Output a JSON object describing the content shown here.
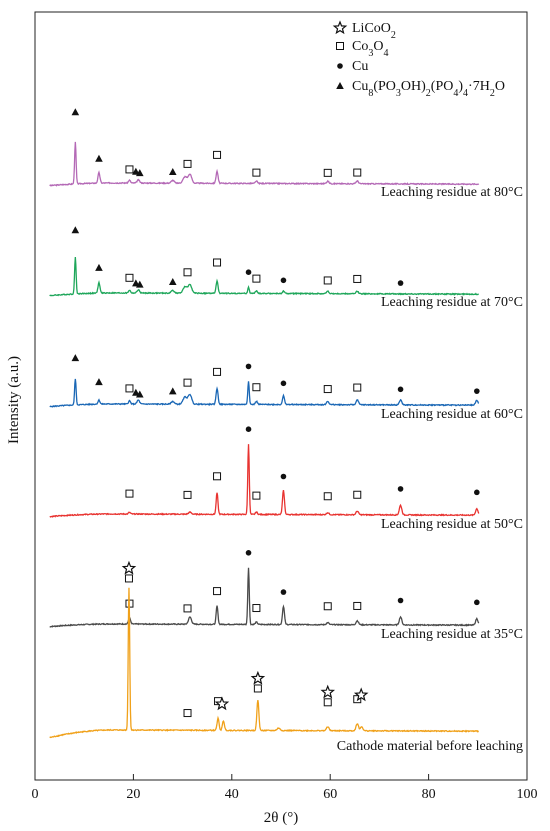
{
  "chart_data": {
    "type": "line",
    "xlabel": "2θ (°)",
    "ylabel": "Intensity (a.u.)",
    "xlim": [
      0,
      100
    ],
    "x_ticks": [
      "0",
      "20",
      "40",
      "60",
      "80",
      "100"
    ],
    "legend": [
      {
        "marker": "star",
        "label": "LiCoO2"
      },
      {
        "marker": "square",
        "label": "Co3O4"
      },
      {
        "marker": "circle",
        "label": "Cu"
      },
      {
        "marker": "triangle",
        "label": "Cu8(PO3OH)2(PO4)4·7H2O"
      }
    ],
    "legend_rich": [
      [
        {
          "t": "LiCoO"
        },
        {
          "t": "2",
          "sub": true
        }
      ],
      [
        {
          "t": "Co"
        },
        {
          "t": "3",
          "sub": true
        },
        {
          "t": "O"
        },
        {
          "t": "4",
          "sub": true
        }
      ],
      [
        {
          "t": "Cu"
        }
      ],
      [
        {
          "t": "Cu"
        },
        {
          "t": "8",
          "sub": true
        },
        {
          "t": "(PO"
        },
        {
          "t": "3",
          "sub": true
        },
        {
          "t": "OH)"
        },
        {
          "t": "2",
          "sub": true
        },
        {
          "t": "(PO"
        },
        {
          "t": "4",
          "sub": true
        },
        {
          "t": ")"
        },
        {
          "t": "4",
          "sub": true
        },
        {
          "t": "·7H"
        },
        {
          "t": "2",
          "sub": true
        },
        {
          "t": "O"
        }
      ]
    ],
    "series": [
      {
        "name": "Leaching residue at 80°C",
        "color": "#b469b6",
        "baseline": 0.38,
        "start": 0.05,
        "peaks": [
          [
            8.2,
            5.2,
            0.15
          ],
          [
            13,
            1.3,
            0.2
          ],
          [
            19.2,
            0.35,
            0.2
          ],
          [
            21,
            0.4,
            0.25
          ],
          [
            28,
            0.35,
            0.3
          ],
          [
            30.5,
            0.8,
            0.4
          ],
          [
            31.5,
            1.1,
            0.35
          ],
          [
            37,
            1.5,
            0.2
          ],
          [
            45,
            0.3,
            0.2
          ],
          [
            59.5,
            0.3,
            0.25
          ],
          [
            65.5,
            0.35,
            0.25
          ]
        ],
        "markers": [
          {
            "symbol": "triangle",
            "x": 8.2,
            "rank": 0,
            "lift": 3.0
          },
          {
            "symbol": "triangle",
            "x": 13,
            "rank": 0,
            "lift": 1.0
          },
          {
            "symbol": "square",
            "x": 19.2,
            "rank": 0,
            "lift": 0.6
          },
          {
            "symbol": "triangle",
            "x": 20.5,
            "rank": 0,
            "lift": 0.6
          },
          {
            "symbol": "triangle",
            "x": 21.3,
            "rank": 0,
            "lift": 0.3
          },
          {
            "symbol": "triangle",
            "x": 28,
            "rank": 0,
            "lift": 0.3
          },
          {
            "symbol": "square",
            "x": 31,
            "rank": 0,
            "lift": 0.9
          },
          {
            "symbol": "square",
            "x": 37,
            "rank": 0,
            "lift": 1.3
          },
          {
            "symbol": "square",
            "x": 45,
            "rank": 0,
            "lift": 0.3
          },
          {
            "symbol": "square",
            "x": 59.5,
            "rank": 0,
            "lift": 0.3
          },
          {
            "symbol": "square",
            "x": 65.5,
            "rank": 0,
            "lift": 0.3
          }
        ]
      },
      {
        "name": "Leaching residue at 70°C",
        "color": "#1ea65a",
        "baseline": 0.38,
        "start": 0.05,
        "peaks": [
          [
            8.2,
            4.6,
            0.15
          ],
          [
            13,
            1.3,
            0.2
          ],
          [
            19.2,
            0.35,
            0.2
          ],
          [
            21,
            0.4,
            0.25
          ],
          [
            28,
            0.35,
            0.3
          ],
          [
            30.5,
            0.8,
            0.4
          ],
          [
            31.5,
            1.1,
            0.35
          ],
          [
            37,
            1.5,
            0.2
          ],
          [
            43.4,
            0.8,
            0.15
          ],
          [
            45,
            0.3,
            0.2
          ],
          [
            50.5,
            0.3,
            0.2
          ],
          [
            59.5,
            0.3,
            0.25
          ],
          [
            65.5,
            0.3,
            0.25
          ]
        ],
        "markers": [
          {
            "symbol": "triangle",
            "x": 8.2,
            "rank": 0,
            "lift": 2.6
          },
          {
            "symbol": "triangle",
            "x": 13,
            "rank": 0,
            "lift": 1.1
          },
          {
            "symbol": "square",
            "x": 19.2,
            "rank": 0,
            "lift": 0.8
          },
          {
            "symbol": "triangle",
            "x": 20.5,
            "rank": 0,
            "lift": 0.4
          },
          {
            "symbol": "triangle",
            "x": 21.3,
            "rank": 0,
            "lift": 0.1
          },
          {
            "symbol": "triangle",
            "x": 28,
            "rank": 0,
            "lift": 0.3
          },
          {
            "symbol": "square",
            "x": 31,
            "rank": 0,
            "lift": 1.1
          },
          {
            "symbol": "square",
            "x": 37,
            "rank": 0,
            "lift": 1.6
          },
          {
            "symbol": "circle",
            "x": 43.4,
            "rank": 0,
            "lift": 1.1
          },
          {
            "symbol": "square",
            "x": 45,
            "rank": 0,
            "lift": 0.8
          },
          {
            "symbol": "circle",
            "x": 50.5,
            "rank": 0,
            "lift": 0.6
          },
          {
            "symbol": "square",
            "x": 59.5,
            "rank": 0,
            "lift": 0.6
          },
          {
            "symbol": "square",
            "x": 65.5,
            "rank": 0,
            "lift": 0.8
          },
          {
            "symbol": "circle",
            "x": 74.3,
            "rank": 0,
            "lift": 0.6
          }
        ]
      },
      {
        "name": "Leaching residue at 60°C",
        "color": "#1a67b5",
        "baseline": 0.38,
        "start": 0.05,
        "peaks": [
          [
            8.2,
            3.3,
            0.15
          ],
          [
            13,
            0.5,
            0.2
          ],
          [
            19.2,
            0.4,
            0.2
          ],
          [
            21,
            0.5,
            0.25
          ],
          [
            28,
            0.35,
            0.3
          ],
          [
            30.5,
            0.9,
            0.4
          ],
          [
            31.5,
            1.2,
            0.35
          ],
          [
            37,
            2.0,
            0.2
          ],
          [
            43.4,
            2.9,
            0.15
          ],
          [
            45,
            0.4,
            0.2
          ],
          [
            50.5,
            1.1,
            0.2
          ],
          [
            59.5,
            0.4,
            0.25
          ],
          [
            65.5,
            0.6,
            0.25
          ],
          [
            74.3,
            0.6,
            0.25
          ],
          [
            89.8,
            0.6,
            0.25
          ]
        ],
        "markers": [
          {
            "symbol": "triangle",
            "x": 8.2,
            "rank": 0,
            "lift": 1.8
          },
          {
            "symbol": "triangle",
            "x": 13,
            "rank": 0,
            "lift": 1.5
          },
          {
            "symbol": "square",
            "x": 19.2,
            "rank": 0,
            "lift": 0.8
          },
          {
            "symbol": "triangle",
            "x": 20.5,
            "rank": 0,
            "lift": 0.6
          },
          {
            "symbol": "triangle",
            "x": 21.3,
            "rank": 0,
            "lift": 0.2
          },
          {
            "symbol": "triangle",
            "x": 28,
            "rank": 0,
            "lift": 0.5
          },
          {
            "symbol": "square",
            "x": 31,
            "rank": 0,
            "lift": 1.1
          },
          {
            "symbol": "square",
            "x": 37,
            "rank": 0,
            "lift": 1.3
          },
          {
            "symbol": "circle",
            "x": 43.4,
            "rank": 0,
            "lift": 1.1
          },
          {
            "symbol": "square",
            "x": 45,
            "rank": 0,
            "lift": 1.0
          },
          {
            "symbol": "circle",
            "x": 50.5,
            "rank": 0,
            "lift": 0.8
          },
          {
            "symbol": "square",
            "x": 59.5,
            "rank": 0,
            "lift": 0.8
          },
          {
            "symbol": "square",
            "x": 65.5,
            "rank": 0,
            "lift": 0.8
          },
          {
            "symbol": "circle",
            "x": 74.3,
            "rank": 0,
            "lift": 0.6
          },
          {
            "symbol": "circle",
            "x": 89.8,
            "rank": 0,
            "lift": 0.4
          }
        ]
      },
      {
        "name": "Leaching residue at 50°C",
        "color": "#e83330",
        "baseline": 0.38,
        "start": 0.05,
        "peaks": [
          [
            19.2,
            0.2,
            0.2
          ],
          [
            31.5,
            0.25,
            0.3
          ],
          [
            37,
            2.7,
            0.18
          ],
          [
            43.4,
            8.8,
            0.15
          ],
          [
            45,
            0.3,
            0.2
          ],
          [
            50.5,
            3.0,
            0.2
          ],
          [
            59.5,
            0.25,
            0.25
          ],
          [
            65.5,
            0.45,
            0.25
          ],
          [
            74.3,
            1.2,
            0.25
          ],
          [
            89.8,
            0.8,
            0.25
          ]
        ],
        "markers": [
          {
            "symbol": "square",
            "x": 19.2,
            "rank": 0,
            "lift": 1.6
          },
          {
            "symbol": "square",
            "x": 31,
            "rank": 0,
            "lift": 1.6
          },
          {
            "symbol": "square",
            "x": 37,
            "rank": 0,
            "lift": 1.3
          },
          {
            "symbol": "circle",
            "x": 43.4,
            "rank": 0,
            "lift": 1.1
          },
          {
            "symbol": "square",
            "x": 45,
            "rank": 0,
            "lift": 1.3
          },
          {
            "symbol": "circle",
            "x": 50.5,
            "rank": 0,
            "lift": 1.0
          },
          {
            "symbol": "square",
            "x": 59.5,
            "rank": 0,
            "lift": 1.3
          },
          {
            "symbol": "square",
            "x": 65.5,
            "rank": 0,
            "lift": 1.3
          },
          {
            "symbol": "circle",
            "x": 74.3,
            "rank": 0,
            "lift": 1.3
          },
          {
            "symbol": "circle",
            "x": 89.8,
            "rank": 0,
            "lift": 1.3
          }
        ]
      },
      {
        "name": "Leaching residue at 35°C",
        "color": "#4a4a4a",
        "baseline": 0.38,
        "start": 0.05,
        "peaks": [
          [
            19.2,
            0.8,
            0.2
          ],
          [
            31.5,
            0.9,
            0.3
          ],
          [
            37,
            2.3,
            0.18
          ],
          [
            43.4,
            7.1,
            0.15
          ],
          [
            45,
            0.3,
            0.2
          ],
          [
            50.5,
            2.3,
            0.2
          ],
          [
            59.5,
            0.25,
            0.25
          ],
          [
            65.5,
            0.5,
            0.25
          ],
          [
            74.3,
            1.0,
            0.25
          ],
          [
            89.8,
            0.8,
            0.25
          ]
        ],
        "markers": [
          {
            "symbol": "square",
            "x": 19.2,
            "rank": 0,
            "lift": 1.0
          },
          {
            "symbol": "square",
            "x": 31,
            "rank": 0,
            "lift": 1.0
          },
          {
            "symbol": "square",
            "x": 37,
            "rank": 0,
            "lift": 1.1
          },
          {
            "symbol": "circle",
            "x": 43.4,
            "rank": 0,
            "lift": 1.1
          },
          {
            "symbol": "square",
            "x": 45,
            "rank": 0,
            "lift": 1.0
          },
          {
            "symbol": "circle",
            "x": 50.5,
            "rank": 0,
            "lift": 1.0
          },
          {
            "symbol": "square",
            "x": 59.5,
            "rank": 0,
            "lift": 1.3
          },
          {
            "symbol": "square",
            "x": 65.5,
            "rank": 0,
            "lift": 1.1
          },
          {
            "symbol": "circle",
            "x": 74.3,
            "rank": 0,
            "lift": 1.3
          },
          {
            "symbol": "circle",
            "x": 89.8,
            "rank": 0,
            "lift": 1.3
          }
        ]
      },
      {
        "name": "Cathode material before leaching",
        "color": "#f0a11a",
        "baseline": 1.0,
        "start": 0.05,
        "peaks": [
          [
            19.1,
            17.8,
            0.15
          ],
          [
            37.2,
            1.5,
            0.2
          ],
          [
            38.3,
            1.2,
            0.2
          ],
          [
            45.3,
            3.8,
            0.2
          ],
          [
            49.5,
            0.3,
            0.3
          ],
          [
            59.5,
            0.5,
            0.25
          ],
          [
            65.5,
            0.9,
            0.25
          ],
          [
            66.4,
            0.5,
            0.25
          ]
        ],
        "markers": [
          {
            "symbol": "square",
            "x": 19.1,
            "rank": 0,
            "lift": 0.4
          },
          {
            "symbol": "star",
            "x": 19.1,
            "rank": 1,
            "lift": 0.4
          },
          {
            "symbol": "square",
            "x": 31,
            "rank": 0,
            "lift": 1.4
          },
          {
            "symbol": "square",
            "x": 37.2,
            "rank": 0,
            "lift": 1.4
          },
          {
            "symbol": "star",
            "x": 38,
            "rank": 1,
            "lift": 0.9
          },
          {
            "symbol": "square",
            "x": 45.3,
            "rank": 0,
            "lift": 0.7
          },
          {
            "symbol": "star",
            "x": 45.3,
            "rank": 1,
            "lift": 0.7
          },
          {
            "symbol": "square",
            "x": 59.5,
            "rank": 0,
            "lift": 2.3
          },
          {
            "symbol": "star",
            "x": 59.5,
            "rank": 1,
            "lift": 2.3
          },
          {
            "symbol": "square",
            "x": 65.5,
            "rank": 0,
            "lift": 2.3
          },
          {
            "symbol": "star",
            "x": 66.3,
            "rank": 1,
            "lift": 2.0
          }
        ]
      }
    ]
  }
}
